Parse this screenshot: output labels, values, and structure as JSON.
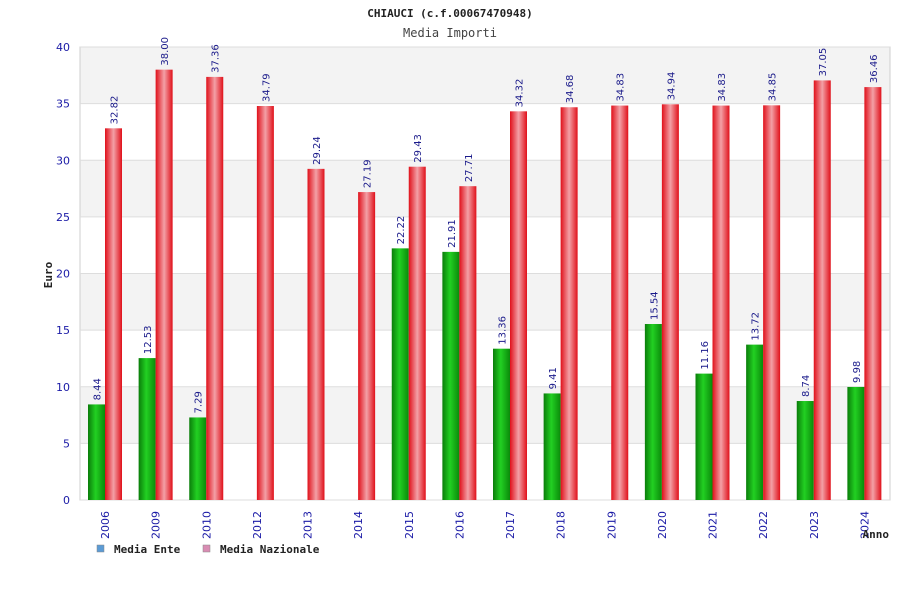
{
  "chart_data": {
    "type": "bar",
    "title": "CHIAUCI (c.f.00067470948)",
    "subtitle": "Media Importi",
    "ylabel": "Euro",
    "xlabel": "Anno",
    "ylim": [
      0,
      40
    ],
    "yticks": [
      0,
      5,
      10,
      15,
      20,
      25,
      30,
      35,
      40
    ],
    "grid": true,
    "legend_position": "bottom-left",
    "categories": [
      "2006",
      "2009",
      "2010",
      "2012",
      "2013",
      "2014",
      "2015",
      "2016",
      "2017",
      "2018",
      "2019",
      "2020",
      "2021",
      "2022",
      "2023",
      "2024"
    ],
    "series": [
      {
        "name": "Media Ente",
        "color": "#12b512",
        "legend_color": "#5b9bd5",
        "values": [
          8.44,
          12.53,
          7.29,
          null,
          null,
          null,
          22.22,
          21.91,
          13.36,
          9.41,
          null,
          15.54,
          11.16,
          13.72,
          8.74,
          9.98
        ],
        "labels": [
          "8.44",
          "12.53",
          "7.29",
          "",
          "",
          "",
          "22.22",
          "21.91",
          "13.36",
          "9.41",
          "",
          "15.54",
          "11.16",
          "13.72",
          "8.74",
          "9.98"
        ]
      },
      {
        "name": "Media Nazionale",
        "color": "#e8101c",
        "legend_color": "#d98cb3",
        "values": [
          32.82,
          38.0,
          37.36,
          34.79,
          29.24,
          27.19,
          29.43,
          27.71,
          34.32,
          34.68,
          34.83,
          34.94,
          34.83,
          34.85,
          37.05,
          36.46
        ],
        "labels": [
          "32.82",
          "38.00",
          "37.36",
          "34.79",
          "29.24",
          "27.19",
          "29.43",
          "27.71",
          "34.32",
          "34.68",
          "34.83",
          "34.94",
          "34.83",
          "34.85",
          "37.05",
          "36.46"
        ]
      }
    ]
  }
}
